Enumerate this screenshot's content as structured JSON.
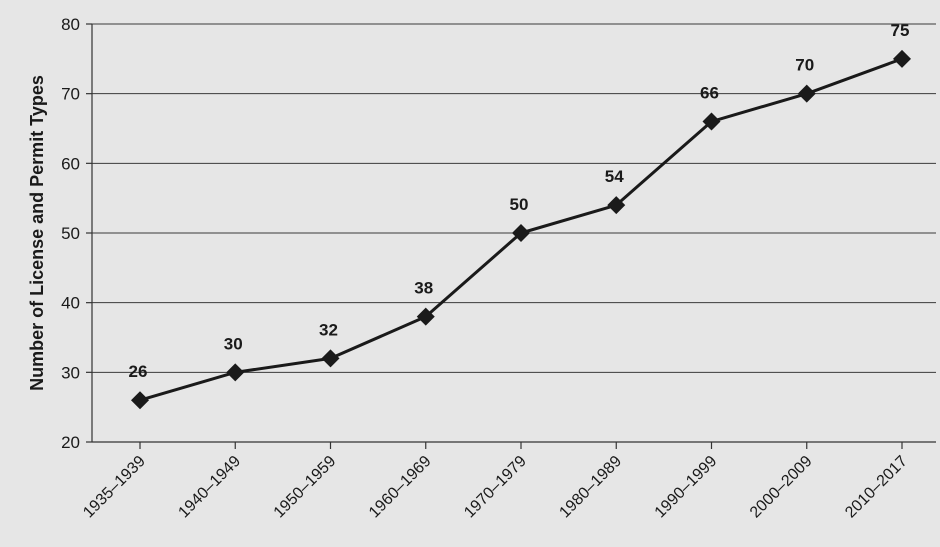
{
  "chart_data": {
    "type": "line",
    "title": "",
    "xlabel": "",
    "ylabel": "Number of License and Permit Types",
    "categories": [
      "1935–1939",
      "1940–1949",
      "1950–1959",
      "1960–1969",
      "1970–1979",
      "1980–1989",
      "1990–1999",
      "2000–2009",
      "2010–2017"
    ],
    "series": [
      {
        "values": [
          26,
          30,
          32,
          38,
          50,
          54,
          66,
          70,
          75
        ]
      }
    ],
    "ylim": [
      20,
      80
    ],
    "yticks": [
      20,
      30,
      40,
      50,
      60,
      70,
      80
    ],
    "data_labels": [
      "26",
      "30",
      "32",
      "38",
      "50",
      "54",
      "66",
      "70",
      "75"
    ],
    "grid": true,
    "legend": "none",
    "marker": "diamond",
    "colors": {
      "line": "#1a1a1a",
      "grid": "#3a3a3a",
      "background": "#e6e6e6"
    }
  }
}
